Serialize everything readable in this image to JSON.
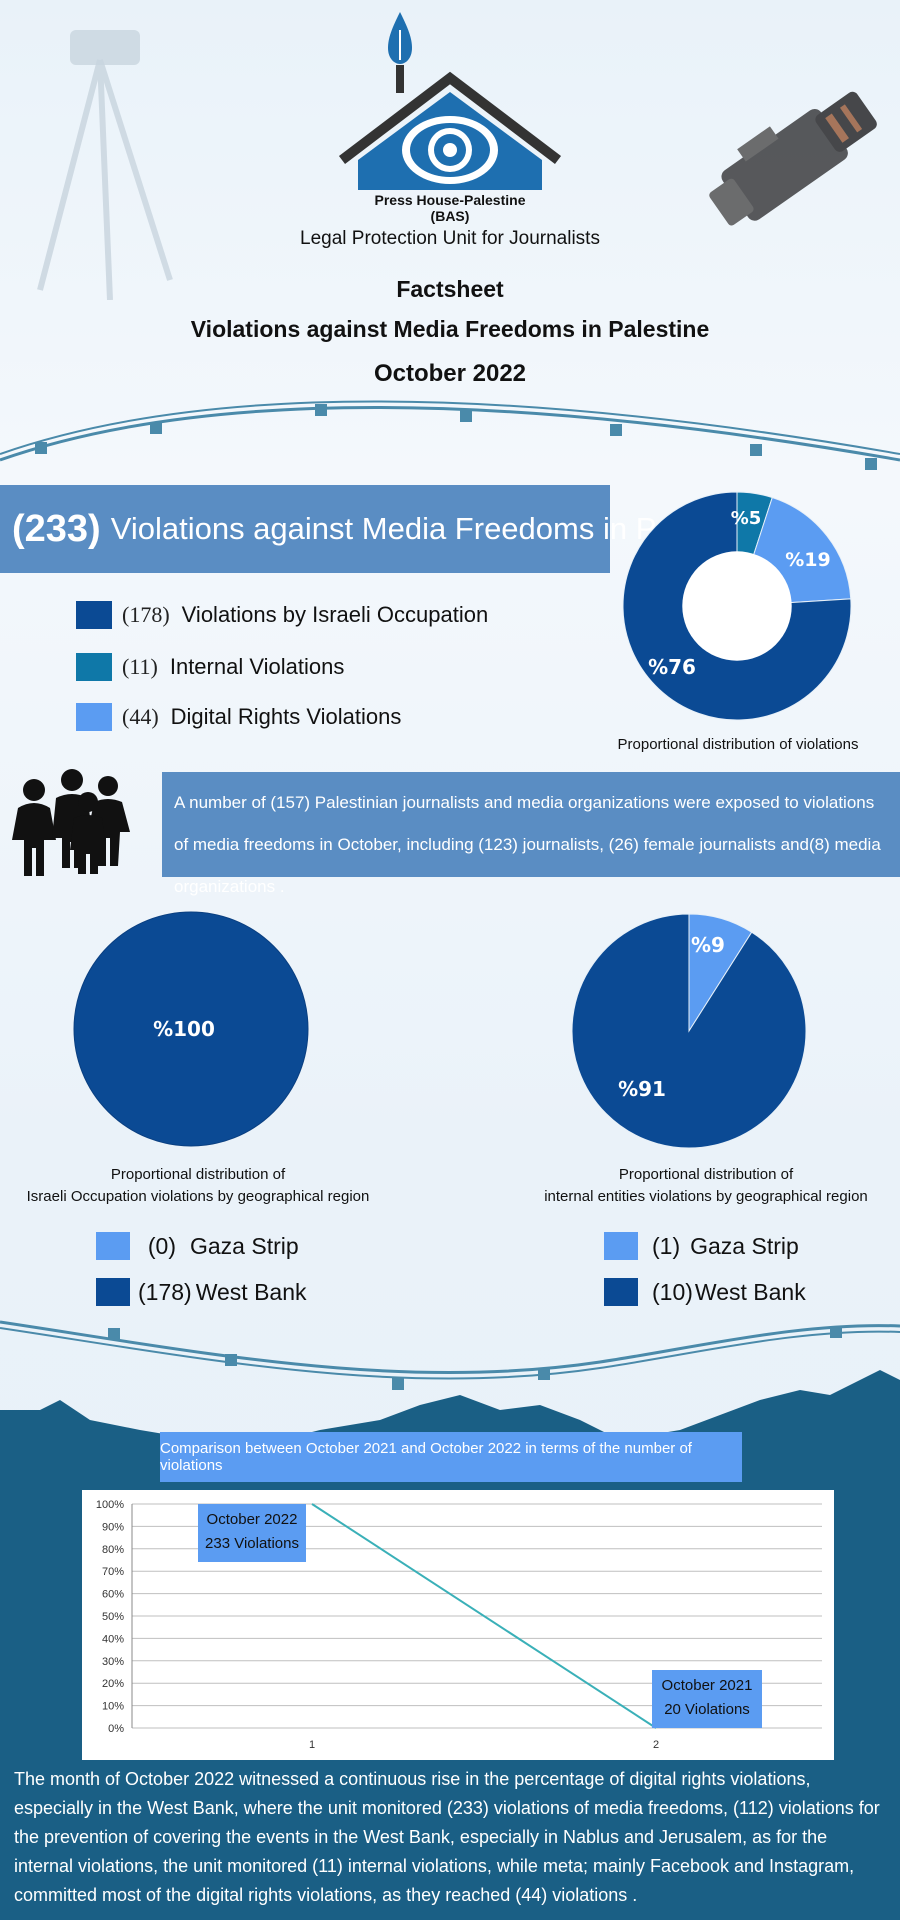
{
  "header": {
    "org_name": "Press House-Palestine",
    "org_abbr": "(BAS)",
    "unit": "Legal Protection Unit for Journalists",
    "doc_type": "Factsheet",
    "title": "Violations against Media Freedoms in Palestine",
    "date": "October 2022"
  },
  "summary": {
    "total": "(233)",
    "total_label": "Violations against Media Freedoms in Palestine",
    "legend": [
      {
        "count": "(178)",
        "label": "Violations by Israeli Occupation",
        "color": "#0b4a94"
      },
      {
        "count": "(11)",
        "label": "Internal Violations",
        "color": "#0f78a8"
      },
      {
        "count": "(44)",
        "label": "Digital Rights Violations",
        "color": "#5b9cf2"
      }
    ]
  },
  "journalists_text": "A number of (157) Palestinian journalists and media organizations were exposed to violations of media freedoms in October, including (123) journalists, (26) female journalists and(8) media organizations .",
  "geo_legends": {
    "occupation": [
      {
        "count": "(0)",
        "label": "Gaza Strip"
      },
      {
        "count": "(178)",
        "label": "West Bank"
      }
    ],
    "internal": [
      {
        "count": "(1)",
        "label": "Gaza Strip"
      },
      {
        "count": "(10)",
        "label": "West Bank"
      }
    ]
  },
  "comparison": {
    "title": "Comparison between October 2021 and October 2022 in terms of the number of violations",
    "box_2022": {
      "line1": "October 2022",
      "line2": "233 Violations"
    },
    "box_2021": {
      "line1": "October 2021",
      "line2": "20 Violations"
    }
  },
  "bottom_text": "The month of October 2022 witnessed a continuous rise in the percentage of digital rights violations, especially in the West Bank, where the unit monitored (233) violations of media freedoms, (112) violations for the prevention of covering the events in the West Bank, especially in Nablus and Jerusalem, as for the internal violations, the unit monitored (11) internal violations, while meta; mainly Facebook and Instagram, committed most of the digital rights violations, as they reached (44) violations .",
  "colors": {
    "dark_blue": "#0b4a94",
    "teal": "#0f78a8",
    "light_blue": "#5b9cf2",
    "banner": "#5a8dc3",
    "wire": "#4a8aaa",
    "mountain": "#1a5f85",
    "line": "#3ab0b8"
  },
  "chart_data": [
    {
      "type": "pie",
      "variant": "donut",
      "caption": "Proportional distribution of violations",
      "categories": [
        "Internal Violations",
        "Digital Rights Violations",
        "Violations by Israeli Occupation"
      ],
      "values": [
        5,
        19,
        76
      ],
      "labels": [
        "%5",
        "%19",
        "%76"
      ],
      "colors": [
        "#0f78a8",
        "#5b9cf2",
        "#0b4a94"
      ]
    },
    {
      "type": "pie",
      "caption_line1": "Proportional distribution of",
      "caption_line2": "Israeli Occupation violations by geographical region",
      "categories": [
        "West Bank",
        "Gaza Strip"
      ],
      "values": [
        100,
        0
      ],
      "labels": [
        "%100",
        ""
      ],
      "colors": [
        "#0b4a94",
        "#5b9cf2"
      ]
    },
    {
      "type": "pie",
      "caption_line1": "Proportional distribution of",
      "caption_line2": "internal entities violations by geographical region",
      "categories": [
        "Gaza Strip",
        "West Bank"
      ],
      "values": [
        9,
        91
      ],
      "labels": [
        "%9",
        "%91"
      ],
      "colors": [
        "#5b9cf2",
        "#0b4a94"
      ]
    },
    {
      "type": "line",
      "title": "Comparison between October 2021 and October 2022 in terms of the number of violations",
      "x": [
        1,
        2
      ],
      "series": [
        {
          "values": [
            100,
            0
          ]
        }
      ],
      "yticks": [
        "0%",
        "10%",
        "20%",
        "30%",
        "40%",
        "50%",
        "60%",
        "70%",
        "80%",
        "90%",
        "100%"
      ],
      "xticks": [
        "1",
        "2"
      ],
      "ylim": [
        0,
        100
      ],
      "grid": true
    }
  ]
}
